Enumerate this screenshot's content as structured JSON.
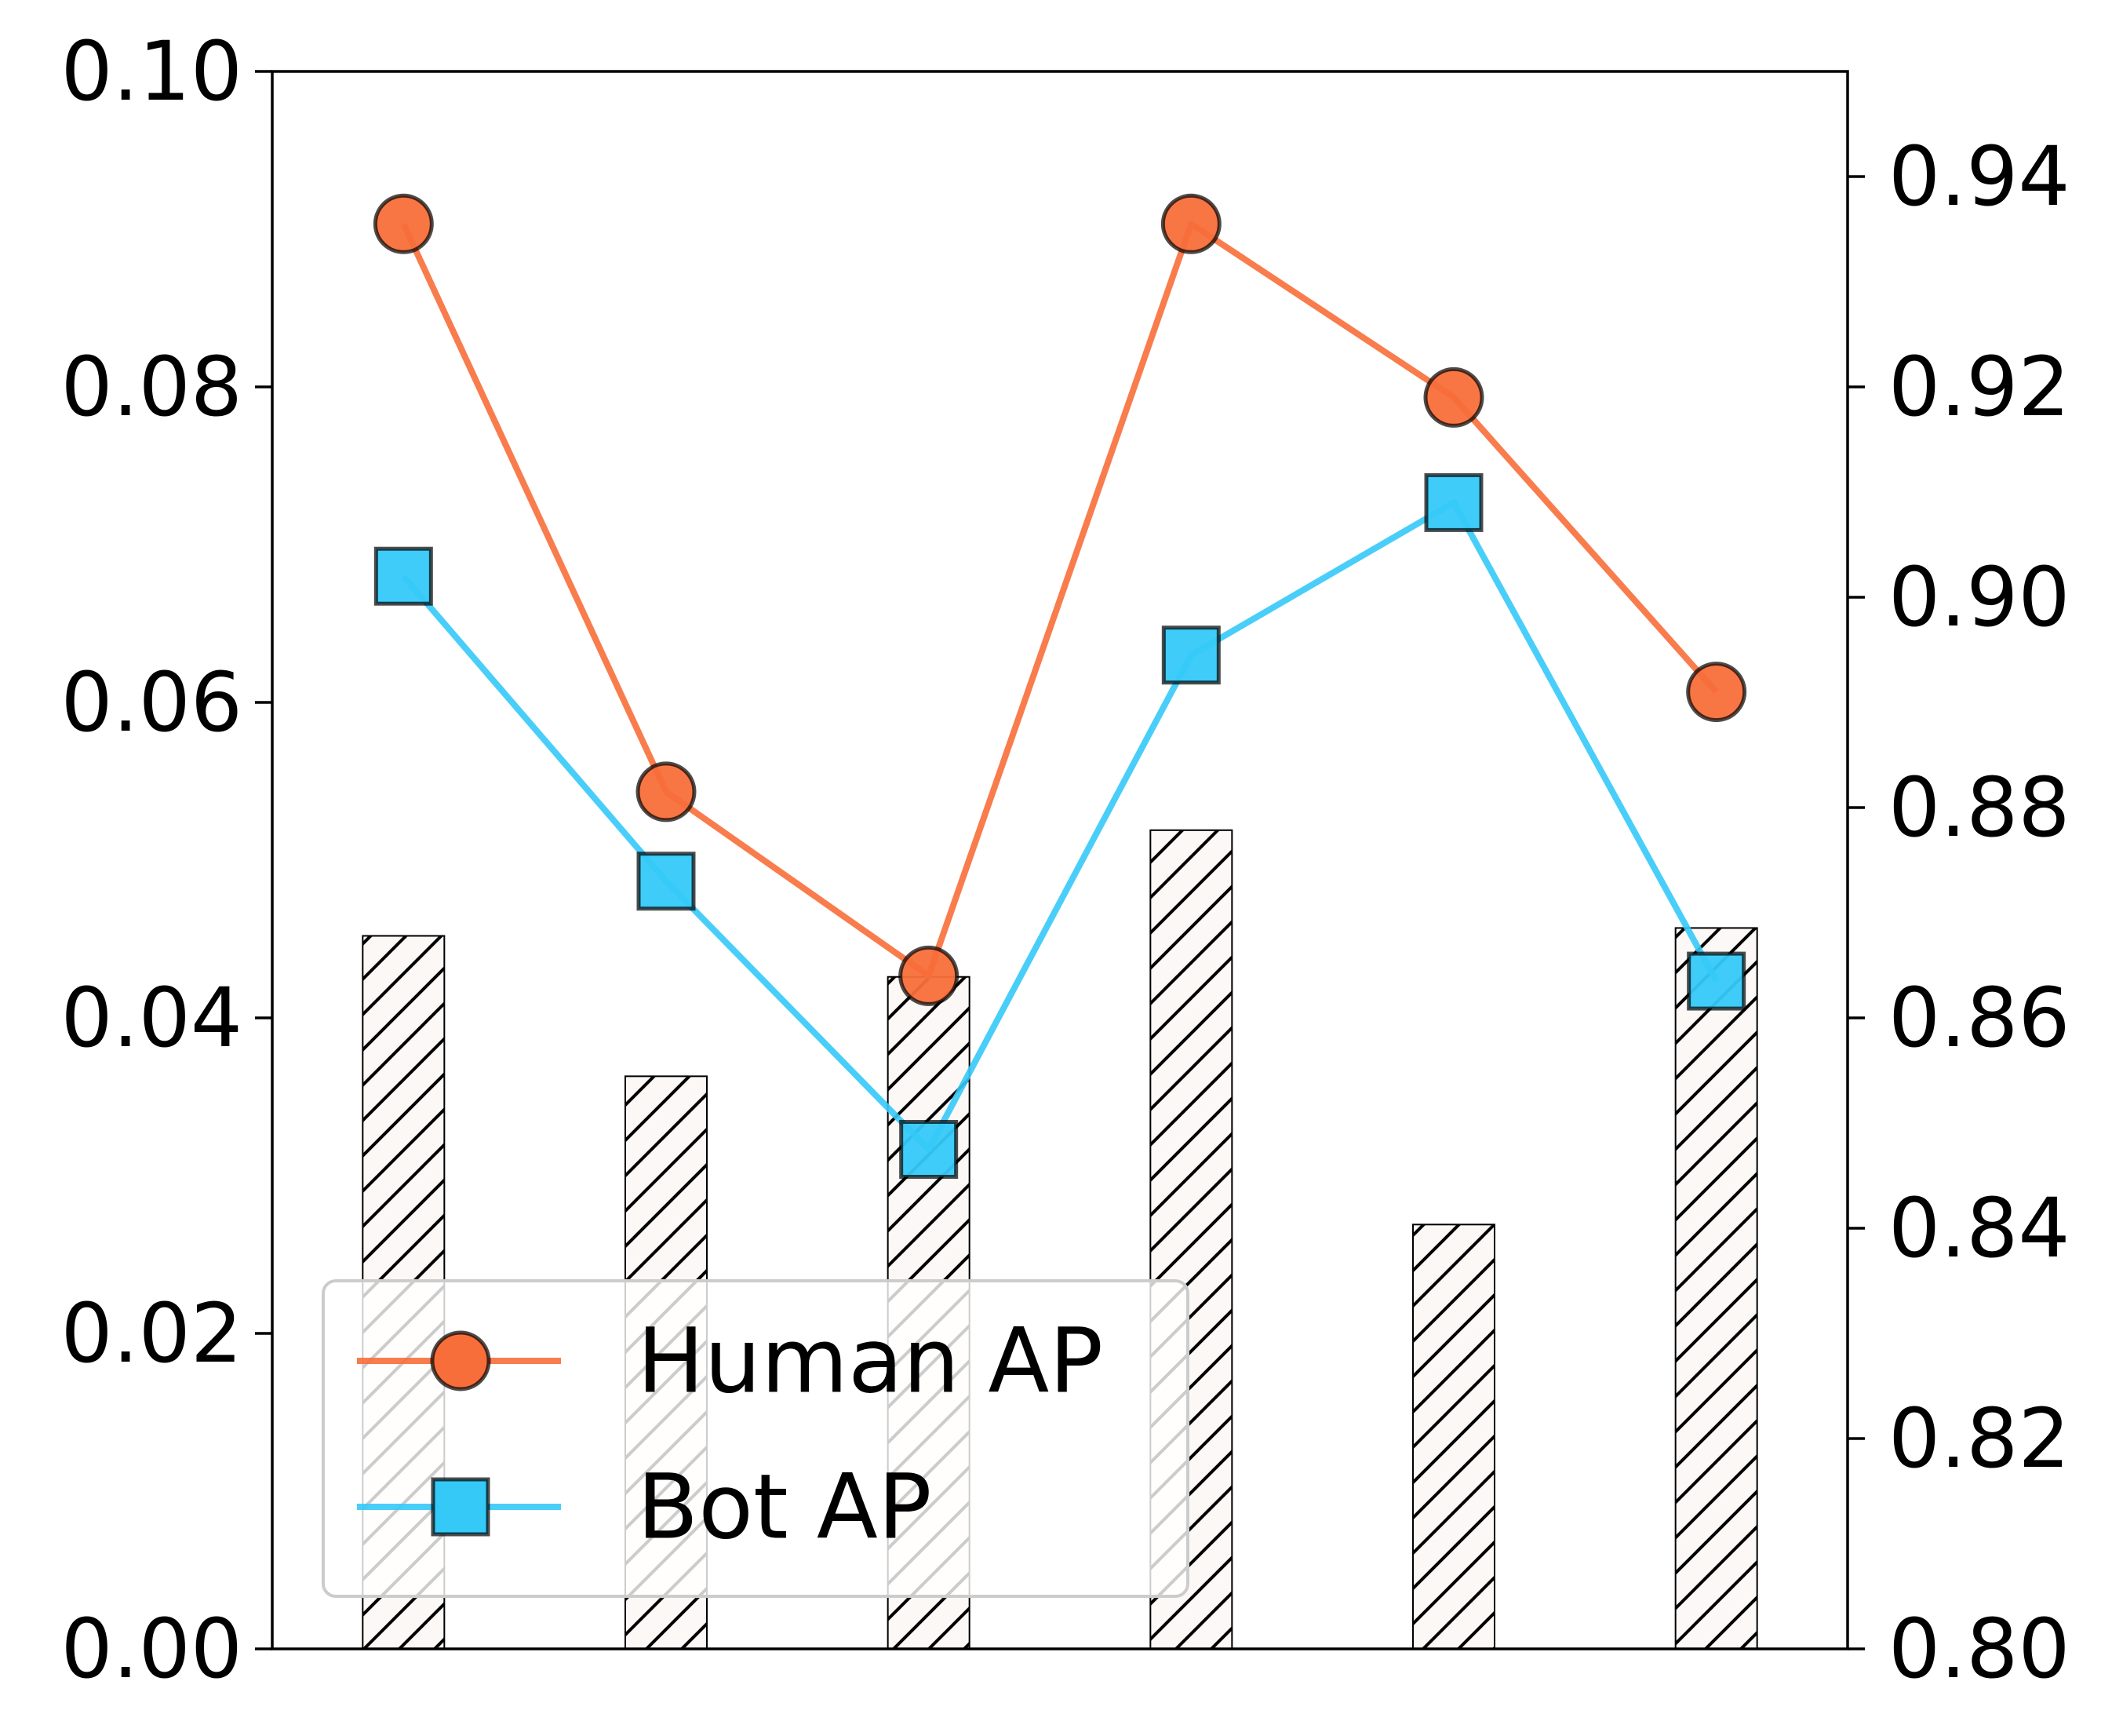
{
  "chart_data": {
    "type": "bar+line",
    "categories": [
      "",
      "",
      "",
      "",
      "",
      ""
    ],
    "bars": {
      "axis": "left",
      "values": [
        0.0452,
        0.0363,
        0.0426,
        0.0519,
        0.0269,
        0.0457
      ],
      "fill": "#fcf8f6",
      "edge": "#000000",
      "hatch": "/"
    },
    "series": [
      {
        "name": "Human AP",
        "axis": "right",
        "values": [
          0.9355,
          0.8815,
          0.864,
          0.9355,
          0.919,
          0.891
        ],
        "color": "#f86e3a",
        "marker": "circle"
      },
      {
        "name": "Bot AP",
        "axis": "right",
        "values": [
          0.902,
          0.873,
          0.8475,
          0.8945,
          0.909,
          0.8635
        ],
        "color": "#35c9f8",
        "marker": "square"
      }
    ],
    "left_axis": {
      "ylim": [
        0,
        0.1
      ],
      "ticks": [
        "0.00",
        "0.02",
        "0.04",
        "0.06",
        "0.08",
        "0.10"
      ]
    },
    "right_axis": {
      "ylim": [
        0.8,
        0.95
      ],
      "ticks": [
        "0.80",
        "0.82",
        "0.84",
        "0.86",
        "0.88",
        "0.90",
        "0.92",
        "0.94"
      ]
    },
    "xlabel": "",
    "ylabel_left": "",
    "ylabel_right": "",
    "grid": false,
    "legend": {
      "placement": "lower-left",
      "entries": [
        "Human AP",
        "Bot AP"
      ]
    }
  }
}
